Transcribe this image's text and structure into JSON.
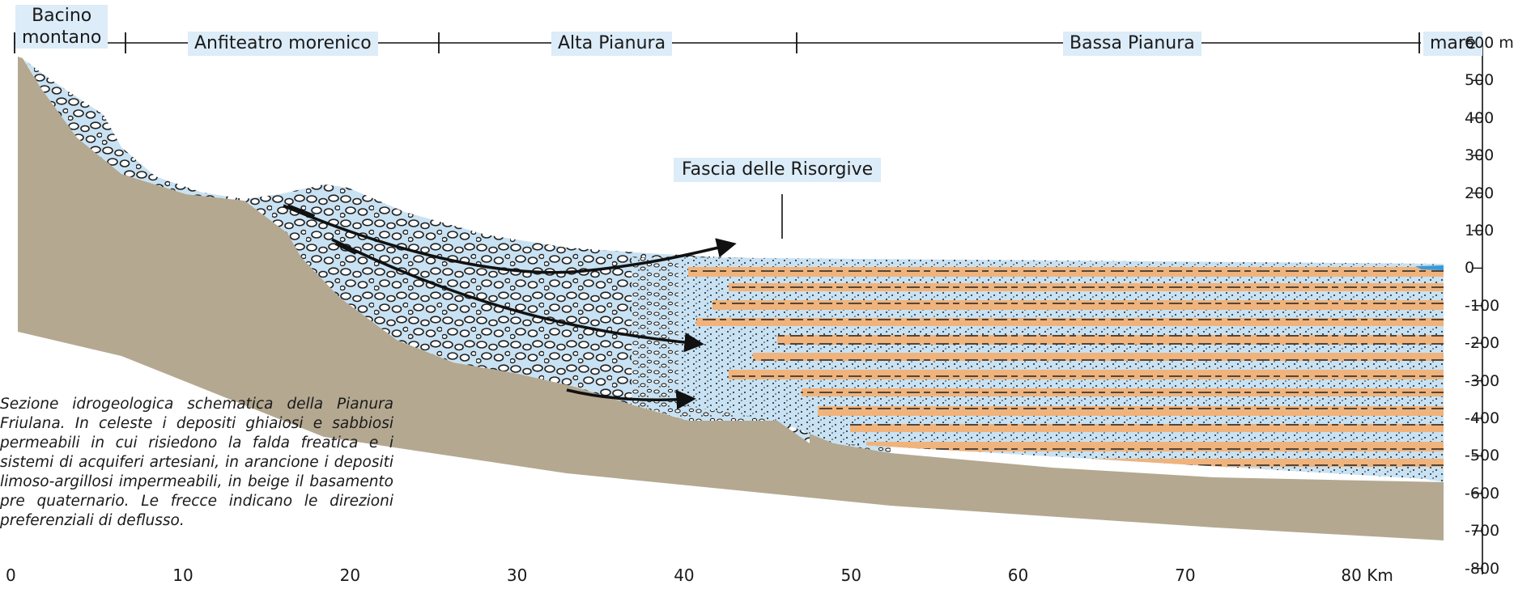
{
  "zones": {
    "bacino_line1": "Bacino",
    "bacino_line2": "montano",
    "anfiteatro": "Anfiteatro morenico",
    "alta": "Alta Pianura",
    "bassa": "Bassa Pianura",
    "mare": "mare"
  },
  "elevation_axis": {
    "ticks": [
      "600 m",
      "500",
      "400",
      "300",
      "200",
      "100",
      "0",
      "-100",
      "-200",
      "-300",
      "-400",
      "-500",
      "-600",
      "-700",
      "-800"
    ]
  },
  "distance_axis": {
    "ticks": [
      "0",
      "10",
      "20",
      "30",
      "40",
      "50",
      "60",
      "70",
      "80 Km"
    ]
  },
  "annotation": {
    "risorgive": "Fascia delle Risorgive"
  },
  "caption": "Sezione idrogeologica schematica della Pianura Friulana. In celeste i depositi ghiaiosi e sabbiosi permeabili in cui risiedono la falda freatica e i sistemi di acquiferi artesiani, in arancione i depositi limoso-argillosi impermeabili, in beige il basamento pre quaternario. Le frecce indicano le direzioni preferenziali di deflusso.",
  "colors": {
    "basement": "#b4a891",
    "permeable": "#c8e2f3",
    "impermeable": "#f0b37b",
    "sea": "#3a9ad9",
    "label_bg": "#dcecf8"
  }
}
